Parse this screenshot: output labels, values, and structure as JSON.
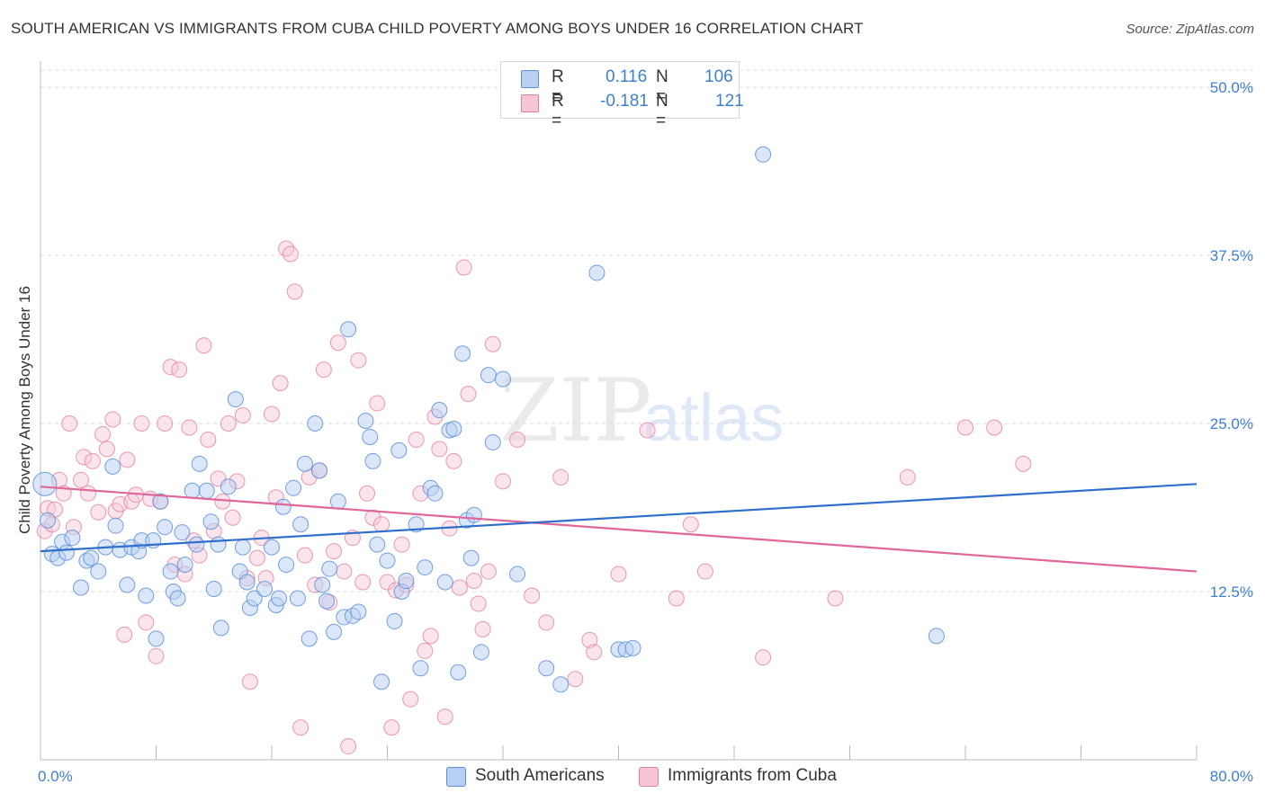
{
  "title": "SOUTH AMERICAN VS IMMIGRANTS FROM CUBA CHILD POVERTY AMONG BOYS UNDER 16 CORRELATION CHART",
  "source": "Source: ZipAtlas.com",
  "watermark": {
    "zip": "ZIP",
    "atlas": "atlas"
  },
  "colors": {
    "blue": "#5b8fd9",
    "blue_fill": "#b8d0f2",
    "blue_line": "#2f6fcc",
    "pink": "#e57fa0",
    "pink_fill": "#f7c6d6",
    "pink_line": "#e0679a",
    "grid": "#dddddd",
    "tick_text": "#3d7fd6"
  },
  "legend": {
    "rows": [
      {
        "r_label": "R =",
        "r_value": "0.116",
        "n_label": "N =",
        "n_value": "106",
        "color": "#b8d0f2",
        "border": "#5b8fd9"
      },
      {
        "r_label": "R =",
        "r_value": "-0.181",
        "n_label": "N =",
        "n_value": "121",
        "color": "#f7c6d6",
        "border": "#e57fa0"
      }
    ]
  },
  "bottom_legend": [
    {
      "label": "South Americans",
      "color": "#b8d0f2",
      "border": "#5b8fd9"
    },
    {
      "label": "Immigrants from Cuba",
      "color": "#f7c6d6",
      "border": "#e57fa0"
    }
  ],
  "chart_data": {
    "type": "scatter",
    "title": "SOUTH AMERICAN VS IMMIGRANTS FROM CUBA CHILD POVERTY AMONG BOYS UNDER 16 CORRELATION CHART",
    "xlabel": "",
    "ylabel": "Child Poverty Among Boys Under 16",
    "xlim": [
      0,
      80
    ],
    "ylim": [
      0,
      50
    ],
    "x_tick_labels": [
      "0.0%",
      "80.0%"
    ],
    "y_ticks": [
      12.5,
      25.0,
      37.5,
      50.0
    ],
    "y_tick_labels": [
      "12.5%",
      "25.0%",
      "37.5%",
      "50.0%"
    ],
    "grid": true,
    "legend_position": "top-center",
    "series": [
      {
        "name": "South Americans",
        "trend": [
          [
            0,
            15.5
          ],
          [
            80,
            20.5
          ]
        ],
        "points": [
          [
            0.3,
            20.5
          ],
          [
            0.5,
            17.8
          ],
          [
            0.8,
            15.3
          ],
          [
            1.2,
            15
          ],
          [
            1.5,
            16.2
          ],
          [
            1.8,
            15.4
          ],
          [
            2.2,
            16.5
          ],
          [
            2.8,
            12.8
          ],
          [
            3.2,
            14.8
          ],
          [
            3.5,
            15
          ],
          [
            4,
            14
          ],
          [
            4.5,
            15.8
          ],
          [
            5,
            21.8
          ],
          [
            5.2,
            17.4
          ],
          [
            5.5,
            15.6
          ],
          [
            6,
            13
          ],
          [
            6.3,
            15.8
          ],
          [
            6.8,
            15.5
          ],
          [
            7,
            16.3
          ],
          [
            7.3,
            12.2
          ],
          [
            7.8,
            16.3
          ],
          [
            8,
            9
          ],
          [
            8.3,
            19.2
          ],
          [
            8.6,
            17.3
          ],
          [
            9,
            14
          ],
          [
            9.2,
            12.5
          ],
          [
            9.5,
            12
          ],
          [
            9.8,
            16.9
          ],
          [
            10,
            14.5
          ],
          [
            10.5,
            20
          ],
          [
            10.8,
            16
          ],
          [
            11,
            22
          ],
          [
            11.5,
            20
          ],
          [
            11.8,
            17.7
          ],
          [
            12,
            12.7
          ],
          [
            12.3,
            16
          ],
          [
            12.5,
            9.8
          ],
          [
            13,
            20.3
          ],
          [
            13.5,
            26.8
          ],
          [
            13.8,
            14
          ],
          [
            14,
            15.8
          ],
          [
            14.3,
            13.2
          ],
          [
            14.5,
            11.3
          ],
          [
            14.8,
            12
          ],
          [
            15.5,
            12.7
          ],
          [
            16,
            15.8
          ],
          [
            16.3,
            11.5
          ],
          [
            16.5,
            12
          ],
          [
            16.8,
            18.8
          ],
          [
            17,
            14.5
          ],
          [
            17.5,
            20.2
          ],
          [
            17.8,
            12
          ],
          [
            18,
            17.5
          ],
          [
            18.3,
            22
          ],
          [
            18.6,
            9
          ],
          [
            19,
            25
          ],
          [
            19.3,
            21.5
          ],
          [
            19.5,
            13
          ],
          [
            19.8,
            11.8
          ],
          [
            20,
            14.2
          ],
          [
            20.3,
            9.5
          ],
          [
            20.6,
            19.2
          ],
          [
            21,
            10.6
          ],
          [
            21.3,
            32
          ],
          [
            21.6,
            10.7
          ],
          [
            22,
            11
          ],
          [
            22.5,
            25.2
          ],
          [
            22.8,
            24
          ],
          [
            23,
            22.2
          ],
          [
            23.3,
            16
          ],
          [
            23.6,
            5.8
          ],
          [
            24,
            14.8
          ],
          [
            24.5,
            10.3
          ],
          [
            24.8,
            23
          ],
          [
            25,
            12.5
          ],
          [
            25.3,
            13.3
          ],
          [
            26,
            17.5
          ],
          [
            26.3,
            6.8
          ],
          [
            26.6,
            14.3
          ],
          [
            27,
            20.2
          ],
          [
            27.3,
            19.8
          ],
          [
            27.6,
            26
          ],
          [
            28,
            13.2
          ],
          [
            28.3,
            24.5
          ],
          [
            28.6,
            24.6
          ],
          [
            28.9,
            6.5
          ],
          [
            29.2,
            30.2
          ],
          [
            29.5,
            17.8
          ],
          [
            29.8,
            15
          ],
          [
            30,
            18.2
          ],
          [
            30.5,
            8
          ],
          [
            31,
            28.6
          ],
          [
            31.3,
            23.6
          ],
          [
            32,
            28.3
          ],
          [
            33,
            13.8
          ],
          [
            35,
            6.8
          ],
          [
            36,
            5.6
          ],
          [
            38.5,
            36.2
          ],
          [
            40,
            8.2
          ],
          [
            40.5,
            8.2
          ],
          [
            41,
            8.3
          ],
          [
            50,
            45
          ],
          [
            62,
            9.2
          ]
        ]
      },
      {
        "name": "Immigrants from Cuba",
        "trend": [
          [
            0,
            20.3
          ],
          [
            80,
            14
          ]
        ],
        "points": [
          [
            0.3,
            17
          ],
          [
            0.5,
            18.7
          ],
          [
            0.8,
            17.5
          ],
          [
            1,
            18.6
          ],
          [
            1.3,
            20.8
          ],
          [
            1.6,
            19.8
          ],
          [
            2,
            25
          ],
          [
            2.3,
            17.3
          ],
          [
            2.8,
            20.8
          ],
          [
            3,
            22.5
          ],
          [
            3.3,
            19.8
          ],
          [
            3.6,
            22.2
          ],
          [
            4,
            18.4
          ],
          [
            4.3,
            24.2
          ],
          [
            4.6,
            23.1
          ],
          [
            5,
            25.3
          ],
          [
            5.2,
            18.5
          ],
          [
            5.5,
            19
          ],
          [
            5.8,
            9.3
          ],
          [
            6,
            22.3
          ],
          [
            6.3,
            19.2
          ],
          [
            6.6,
            19.7
          ],
          [
            7,
            25
          ],
          [
            7.3,
            10.2
          ],
          [
            7.6,
            19.4
          ],
          [
            8,
            7.7
          ],
          [
            8.3,
            19.2
          ],
          [
            8.6,
            25
          ],
          [
            9,
            29.2
          ],
          [
            9.3,
            14.5
          ],
          [
            9.6,
            29
          ],
          [
            10,
            13.8
          ],
          [
            10.3,
            24.7
          ],
          [
            10.6,
            16.3
          ],
          [
            11,
            15.2
          ],
          [
            11.3,
            30.8
          ],
          [
            11.6,
            23.8
          ],
          [
            12,
            17
          ],
          [
            12.3,
            20.9
          ],
          [
            12.6,
            19.2
          ],
          [
            13,
            25
          ],
          [
            13.3,
            18
          ],
          [
            13.6,
            20.7
          ],
          [
            14,
            25.6
          ],
          [
            14.3,
            13.5
          ],
          [
            14.5,
            5.8
          ],
          [
            15,
            15
          ],
          [
            15.3,
            16.5
          ],
          [
            15.6,
            13.5
          ],
          [
            16,
            25.7
          ],
          [
            16.3,
            19.5
          ],
          [
            16.6,
            28
          ],
          [
            17,
            38
          ],
          [
            17.3,
            37.6
          ],
          [
            17.6,
            34.8
          ],
          [
            18,
            2.4
          ],
          [
            18.3,
            15.2
          ],
          [
            18.6,
            21
          ],
          [
            19,
            13
          ],
          [
            19.3,
            21.5
          ],
          [
            19.6,
            29
          ],
          [
            20,
            11.7
          ],
          [
            20.3,
            15.5
          ],
          [
            20.6,
            31
          ],
          [
            21,
            14
          ],
          [
            21.3,
            1
          ],
          [
            21.6,
            16.5
          ],
          [
            22,
            29.7
          ],
          [
            22.3,
            13.2
          ],
          [
            22.6,
            19.8
          ],
          [
            23,
            18
          ],
          [
            23.3,
            26.5
          ],
          [
            23.6,
            17.5
          ],
          [
            24,
            13.2
          ],
          [
            24.3,
            2.4
          ],
          [
            24.6,
            12.6
          ],
          [
            25,
            16
          ],
          [
            25.3,
            13
          ],
          [
            25.6,
            4.5
          ],
          [
            26,
            23.8
          ],
          [
            26.3,
            19.8
          ],
          [
            26.6,
            8.1
          ],
          [
            27,
            9.2
          ],
          [
            27.3,
            25.5
          ],
          [
            27.6,
            23.1
          ],
          [
            28,
            3.2
          ],
          [
            28.3,
            17.2
          ],
          [
            28.6,
            22.2
          ],
          [
            29,
            12.8
          ],
          [
            29.3,
            36.6
          ],
          [
            29.6,
            27.2
          ],
          [
            30,
            13.3
          ],
          [
            30.3,
            11.6
          ],
          [
            30.6,
            9.7
          ],
          [
            31,
            14
          ],
          [
            31.3,
            30.9
          ],
          [
            32,
            20.7
          ],
          [
            33,
            23.8
          ],
          [
            34,
            12.2
          ],
          [
            35,
            10.2
          ],
          [
            36,
            21
          ],
          [
            37,
            6
          ],
          [
            38,
            8.9
          ],
          [
            38.3,
            8
          ],
          [
            40,
            13.8
          ],
          [
            42,
            24.5
          ],
          [
            44,
            12
          ],
          [
            45,
            17.5
          ],
          [
            46,
            14
          ],
          [
            50,
            7.6
          ],
          [
            55,
            12
          ],
          [
            60,
            21
          ],
          [
            64,
            24.7
          ],
          [
            66,
            24.7
          ],
          [
            68,
            22
          ]
        ]
      }
    ]
  }
}
